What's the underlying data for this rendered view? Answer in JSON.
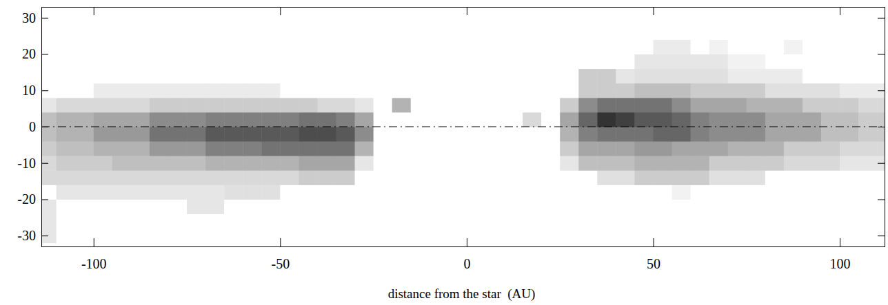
{
  "chart_data": {
    "type": "heatmap",
    "x_label": "distance from the star  (AU)",
    "xlim": [
      -114,
      112
    ],
    "xticks": [
      -100,
      -50,
      0,
      50,
      100
    ],
    "ylim": [
      -33,
      33
    ],
    "yticks": [
      -30,
      -20,
      -10,
      0,
      10,
      20,
      30
    ],
    "hline": 0,
    "line_style": "dashdot",
    "color": "gray",
    "zlim": [
      0,
      1
    ],
    "x_edges": [
      -115,
      -110,
      -105,
      -100,
      -95,
      -90,
      -85,
      -80,
      -75,
      -70,
      -65,
      -60,
      -55,
      -50,
      -45,
      -40,
      -35,
      -30,
      -25,
      -20,
      -15,
      -10,
      -5,
      0,
      5,
      10,
      15,
      20,
      25,
      30,
      35,
      40,
      45,
      50,
      55,
      60,
      65,
      70,
      75,
      80,
      85,
      90,
      95,
      100,
      105,
      110,
      115
    ],
    "y_edges": [
      -32,
      -28,
      -24,
      -20,
      -16,
      -12,
      -8,
      -4,
      0,
      4,
      8,
      12,
      16,
      20,
      24,
      28,
      32
    ],
    "z": [
      [
        0.1,
        0,
        0,
        0,
        0,
        0,
        0,
        0,
        0,
        0,
        0,
        0,
        0,
        0,
        0,
        0,
        0,
        0,
        0,
        0,
        0,
        0,
        0,
        0,
        0,
        0,
        0,
        0,
        0,
        0,
        0,
        0,
        0,
        0,
        0,
        0,
        0,
        0,
        0,
        0,
        0,
        0,
        0,
        0,
        0,
        0
      ],
      [
        0.1,
        0,
        0,
        0,
        0,
        0,
        0,
        0,
        0,
        0,
        0,
        0,
        0,
        0,
        0,
        0,
        0,
        0,
        0,
        0,
        0,
        0,
        0,
        0,
        0,
        0,
        0,
        0,
        0,
        0,
        0,
        0,
        0,
        0,
        0,
        0,
        0,
        0,
        0,
        0,
        0,
        0,
        0,
        0,
        0,
        0
      ],
      [
        0.1,
        0,
        0,
        0,
        0,
        0,
        0,
        0,
        0.1,
        0.1,
        0,
        0,
        0,
        0,
        0,
        0,
        0,
        0,
        0,
        0,
        0,
        0,
        0,
        0,
        0,
        0,
        0,
        0,
        0,
        0,
        0,
        0,
        0,
        0,
        0,
        0,
        0,
        0,
        0,
        0,
        0,
        0,
        0,
        0,
        0,
        0
      ],
      [
        0,
        0.1,
        0.1,
        0.1,
        0.1,
        0.1,
        0.1,
        0.1,
        0.1,
        0.1,
        0.12,
        0.12,
        0.12,
        0,
        0,
        0,
        0,
        0,
        0,
        0,
        0,
        0,
        0,
        0,
        0,
        0,
        0,
        0,
        0,
        0,
        0,
        0,
        0,
        0,
        0.05,
        0,
        0,
        0,
        0,
        0,
        0,
        0,
        0,
        0,
        0,
        0
      ],
      [
        0.15,
        0.15,
        0.15,
        0.15,
        0.15,
        0.15,
        0.15,
        0.15,
        0.15,
        0.15,
        0.15,
        0.15,
        0.15,
        0.15,
        0.2,
        0.2,
        0.2,
        0,
        0,
        0,
        0,
        0,
        0,
        0,
        0,
        0,
        0,
        0,
        0,
        0,
        0.12,
        0.12,
        0.2,
        0.2,
        0.2,
        0.2,
        0.12,
        0.12,
        0.12,
        0,
        0,
        0,
        0,
        0,
        0,
        0
      ],
      [
        0.15,
        0.2,
        0.2,
        0.2,
        0.25,
        0.25,
        0.25,
        0.25,
        0.25,
        0.3,
        0.3,
        0.3,
        0.3,
        0.3,
        0.35,
        0.35,
        0.35,
        0.1,
        0,
        0,
        0,
        0,
        0,
        0,
        0,
        0,
        0,
        0,
        0.1,
        0.25,
        0.25,
        0.25,
        0.3,
        0.3,
        0.3,
        0.3,
        0.2,
        0.2,
        0.2,
        0.2,
        0.15,
        0.15,
        0.15,
        0.1,
        0.1,
        0.1
      ],
      [
        0.2,
        0.25,
        0.25,
        0.3,
        0.3,
        0.3,
        0.4,
        0.4,
        0.4,
        0.5,
        0.5,
        0.5,
        0.55,
        0.55,
        0.55,
        0.55,
        0.55,
        0.3,
        0,
        0,
        0,
        0,
        0,
        0,
        0,
        0,
        0,
        0,
        0.2,
        0.35,
        0.35,
        0.35,
        0.4,
        0.4,
        0.35,
        0.35,
        0.35,
        0.3,
        0.3,
        0.3,
        0.2,
        0.2,
        0.2,
        0.15,
        0.15,
        0.15
      ],
      [
        0.25,
        0.3,
        0.3,
        0.4,
        0.4,
        0.4,
        0.55,
        0.55,
        0.55,
        0.65,
        0.65,
        0.65,
        0.65,
        0.65,
        0.7,
        0.7,
        0.65,
        0.45,
        0,
        0,
        0,
        0,
        0,
        0,
        0,
        0,
        0,
        0,
        0.3,
        0.5,
        0.55,
        0.55,
        0.55,
        0.6,
        0.6,
        0.5,
        0.45,
        0.45,
        0.45,
        0.35,
        0.35,
        0.35,
        0.25,
        0.25,
        0.2,
        0.2
      ],
      [
        0.25,
        0.3,
        0.3,
        0.35,
        0.35,
        0.35,
        0.45,
        0.45,
        0.45,
        0.5,
        0.5,
        0.5,
        0.5,
        0.5,
        0.55,
        0.55,
        0.5,
        0.35,
        0,
        0,
        0,
        0,
        0,
        0,
        0,
        0,
        0.15,
        0,
        0.35,
        0.6,
        0.8,
        0.75,
        0.65,
        0.65,
        0.6,
        0.5,
        0.45,
        0.45,
        0.45,
        0.35,
        0.35,
        0.35,
        0.25,
        0.25,
        0.2,
        0.2
      ],
      [
        0.1,
        0.15,
        0.15,
        0.15,
        0.15,
        0.15,
        0.2,
        0.2,
        0.2,
        0.2,
        0.2,
        0.2,
        0.2,
        0.2,
        0.2,
        0.15,
        0.15,
        0.1,
        0,
        0.3,
        0,
        0,
        0,
        0,
        0,
        0,
        0,
        0,
        0.2,
        0.45,
        0.55,
        0.55,
        0.55,
        0.55,
        0.45,
        0.35,
        0.35,
        0.35,
        0.3,
        0.3,
        0.3,
        0.2,
        0.2,
        0.2,
        0.15,
        0.15
      ],
      [
        0,
        0,
        0,
        0.08,
        0.08,
        0.08,
        0.08,
        0.08,
        0.08,
        0.08,
        0.08,
        0.08,
        0.08,
        0,
        0,
        0,
        0,
        0,
        0,
        0,
        0,
        0,
        0,
        0,
        0,
        0,
        0,
        0,
        0,
        0.2,
        0.2,
        0.2,
        0.25,
        0.25,
        0.25,
        0.2,
        0.2,
        0.2,
        0.2,
        0.12,
        0.12,
        0.12,
        0.12,
        0.08,
        0.08,
        0.08
      ],
      [
        0,
        0,
        0,
        0,
        0,
        0,
        0,
        0,
        0,
        0,
        0,
        0,
        0,
        0,
        0,
        0,
        0,
        0,
        0,
        0,
        0,
        0,
        0,
        0,
        0,
        0,
        0,
        0,
        0,
        0.2,
        0.2,
        0.1,
        0.12,
        0.12,
        0.12,
        0.12,
        0.12,
        0.08,
        0.08,
        0.08,
        0.08,
        0,
        0,
        0,
        0,
        0
      ],
      [
        0,
        0,
        0,
        0,
        0,
        0,
        0,
        0,
        0,
        0,
        0,
        0,
        0,
        0,
        0,
        0,
        0,
        0,
        0,
        0,
        0,
        0,
        0,
        0,
        0,
        0,
        0,
        0,
        0,
        0,
        0,
        0,
        0.1,
        0.1,
        0.1,
        0.1,
        0.1,
        0.05,
        0.05,
        0,
        0,
        0,
        0,
        0,
        0,
        0
      ],
      [
        0,
        0,
        0,
        0,
        0,
        0,
        0,
        0,
        0,
        0,
        0,
        0,
        0,
        0,
        0,
        0,
        0,
        0,
        0,
        0,
        0,
        0,
        0,
        0,
        0,
        0,
        0,
        0,
        0,
        0,
        0,
        0,
        0,
        0.08,
        0.08,
        0,
        0.05,
        0,
        0,
        0,
        0.05,
        0,
        0,
        0,
        0,
        0
      ],
      [
        0,
        0,
        0,
        0,
        0,
        0,
        0,
        0,
        0,
        0,
        0,
        0,
        0,
        0,
        0,
        0,
        0,
        0,
        0,
        0,
        0,
        0,
        0,
        0,
        0,
        0,
        0,
        0,
        0,
        0,
        0,
        0,
        0,
        0,
        0,
        0,
        0,
        0,
        0,
        0,
        0,
        0,
        0,
        0,
        0,
        0
      ],
      [
        0,
        0,
        0,
        0,
        0,
        0,
        0,
        0,
        0,
        0,
        0,
        0,
        0,
        0,
        0,
        0,
        0,
        0,
        0,
        0,
        0,
        0,
        0,
        0,
        0,
        0,
        0,
        0,
        0,
        0,
        0,
        0,
        0,
        0,
        0,
        0,
        0,
        0,
        0,
        0,
        0,
        0,
        0,
        0,
        0,
        0
      ]
    ]
  }
}
